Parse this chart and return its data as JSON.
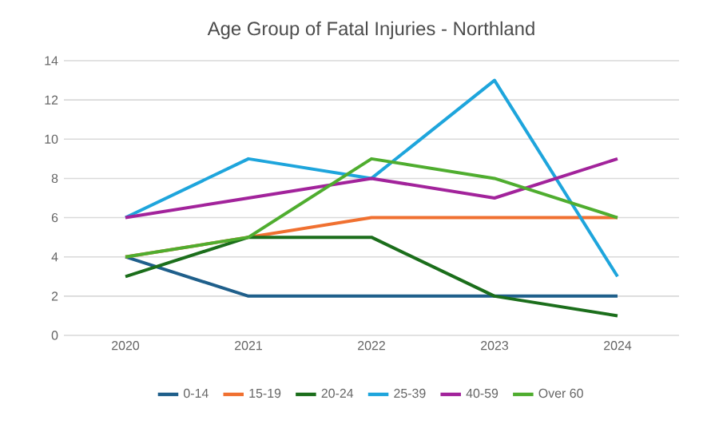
{
  "chart_data": {
    "type": "line",
    "title": "Age Group of Fatal Injuries - Northland",
    "categories": [
      "2020",
      "2021",
      "2022",
      "2023",
      "2024"
    ],
    "series": [
      {
        "name": "0-14",
        "color": "#1f5f8b",
        "values": [
          4,
          2,
          2,
          2,
          2
        ]
      },
      {
        "name": "15-19",
        "color": "#f07030",
        "values": [
          4,
          5,
          6,
          6,
          6
        ]
      },
      {
        "name": "20-24",
        "color": "#1b6e1b",
        "values": [
          3,
          5,
          5,
          2,
          1
        ]
      },
      {
        "name": "25-39",
        "color": "#1ea5dc",
        "values": [
          6,
          9,
          8,
          13,
          3
        ]
      },
      {
        "name": "40-59",
        "color": "#a2239b",
        "values": [
          6,
          7,
          8,
          7,
          9
        ]
      },
      {
        "name": "Over 60",
        "color": "#4fad2f",
        "values": [
          4,
          5,
          9,
          8,
          6
        ]
      }
    ],
    "ylim": [
      0,
      14
    ],
    "yticks": [
      0,
      2,
      4,
      6,
      8,
      10,
      12,
      14
    ],
    "grid": "y",
    "legend": "bottom",
    "marker": "none",
    "line_style": "solid"
  }
}
